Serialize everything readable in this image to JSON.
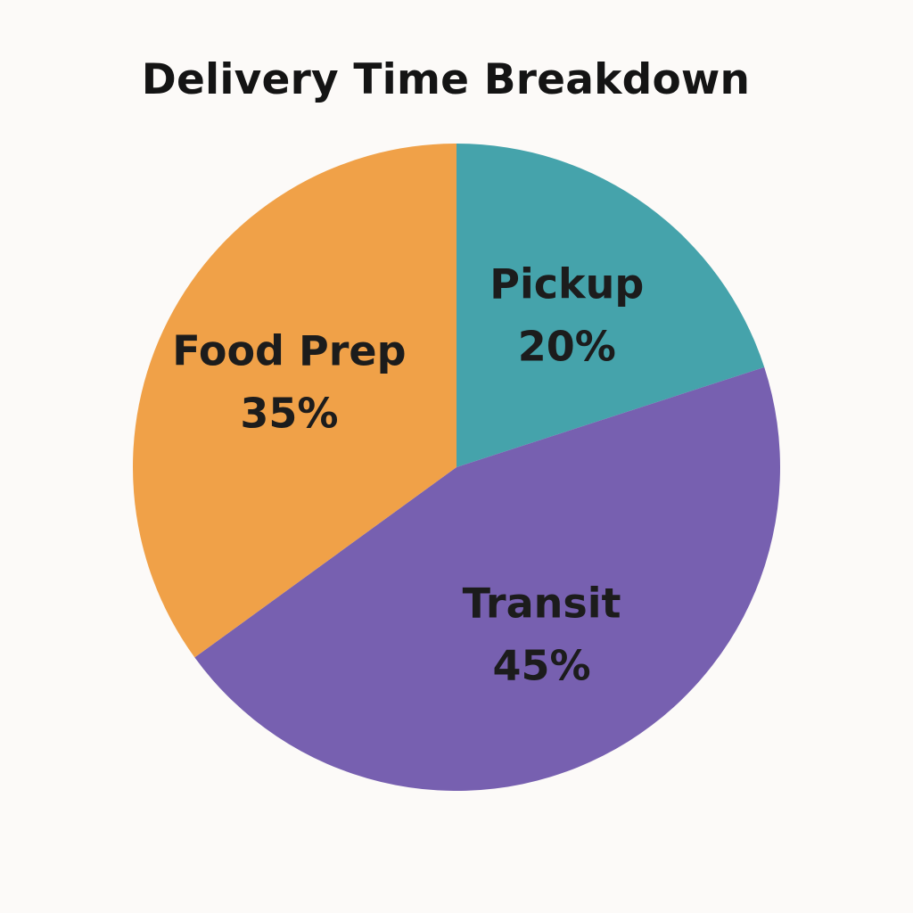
{
  "chart_data": {
    "type": "pie",
    "title": "Delivery Time Breakdown",
    "slices": [
      {
        "label": "Pickup",
        "value": 20,
        "value_label": "20%",
        "color": "#45a3ab"
      },
      {
        "label": "Transit",
        "value": 45,
        "value_label": "45%",
        "color": "#7760b0"
      },
      {
        "label": "Food Prep",
        "value": 35,
        "value_label": "35%",
        "color": "#f0a148"
      }
    ],
    "start_angle": "12 o'clock",
    "direction": "clockwise",
    "legend": "none"
  }
}
